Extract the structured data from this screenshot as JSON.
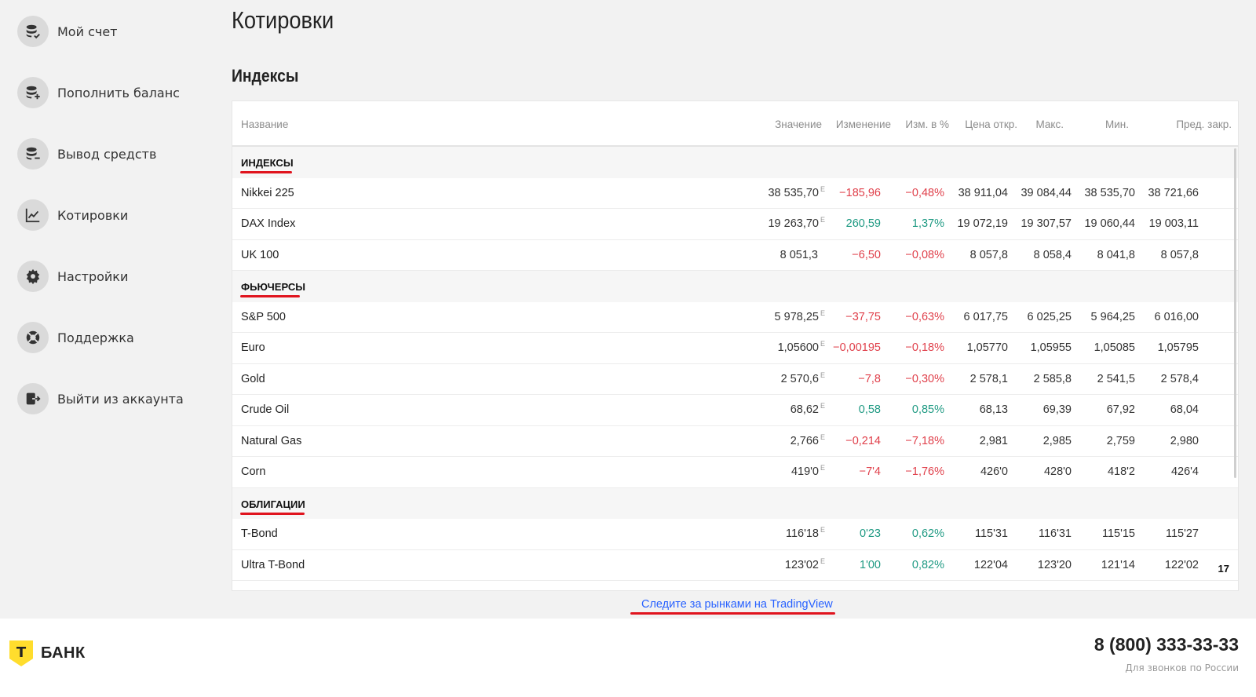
{
  "sidebar": {
    "items": [
      {
        "label": "Мой счет",
        "icon": "coins-check-icon"
      },
      {
        "label": "Пополнить баланс",
        "icon": "coins-plus-icon"
      },
      {
        "label": "Вывод средств",
        "icon": "coins-minus-icon"
      },
      {
        "label": "Котировки",
        "icon": "chart-line-icon"
      },
      {
        "label": "Настройки",
        "icon": "gear-icon"
      },
      {
        "label": "Поддержка",
        "icon": "lifebuoy-icon"
      },
      {
        "label": "Выйти из аккаунта",
        "icon": "logout-icon"
      }
    ]
  },
  "main": {
    "title": "Котировки",
    "section_title": "Индексы"
  },
  "table": {
    "columns": {
      "name": "Название",
      "value": "Значение",
      "change": "Изменение",
      "change_pct": "Изм. в %",
      "open": "Цена откр.",
      "high": "Макс.",
      "low": "Мин.",
      "prev_close": "Пред. закр."
    },
    "groups": {
      "indices": "ИНДЕКСЫ",
      "futures": "ФЬЮЧЕРСЫ",
      "bonds": "ОБЛИГАЦИИ"
    },
    "rows": {
      "nikkei": {
        "name": "Nikkei 225",
        "value": "38 535,70",
        "flag": "E",
        "change": "−185,96",
        "pct": "−0,48%",
        "open": "38 911,04",
        "high": "39 084,44",
        "low": "38 535,70",
        "prev": "38 721,66"
      },
      "dax": {
        "name": "DAX Index",
        "value": "19 263,70",
        "flag": "E",
        "change": "260,59",
        "pct": "1,37%",
        "open": "19 072,19",
        "high": "19 307,57",
        "low": "19 060,44",
        "prev": "19 003,11"
      },
      "uk100": {
        "name": "UK 100",
        "value": "8 051,3",
        "flag": "",
        "change": "−6,50",
        "pct": "−0,08%",
        "open": "8 057,8",
        "high": "8 058,4",
        "low": "8 041,8",
        "prev": "8 057,8"
      },
      "sp500": {
        "name": "S&P 500",
        "value": "5 978,25",
        "flag": "E",
        "change": "−37,75",
        "pct": "−0,63%",
        "open": "6 017,75",
        "high": "6 025,25",
        "low": "5 964,25",
        "prev": "6 016,00"
      },
      "euro": {
        "name": "Euro",
        "value": "1,05600",
        "flag": "E",
        "change": "−0,00195",
        "pct": "−0,18%",
        "open": "1,05770",
        "high": "1,05955",
        "low": "1,05085",
        "prev": "1,05795"
      },
      "gold": {
        "name": "Gold",
        "value": "2 570,6",
        "flag": "E",
        "change": "−7,8",
        "pct": "−0,30%",
        "open": "2 578,1",
        "high": "2 585,8",
        "low": "2 541,5",
        "prev": "2 578,4"
      },
      "crude": {
        "name": "Crude Oil",
        "value": "68,62",
        "flag": "E",
        "change": "0,58",
        "pct": "0,85%",
        "open": "68,13",
        "high": "69,39",
        "low": "67,92",
        "prev": "68,04"
      },
      "gas": {
        "name": "Natural Gas",
        "value": "2,766",
        "flag": "E",
        "change": "−0,214",
        "pct": "−7,18%",
        "open": "2,981",
        "high": "2,985",
        "low": "2,759",
        "prev": "2,980"
      },
      "corn": {
        "name": "Corn",
        "value": "419'0",
        "flag": "E",
        "change": "−7'4",
        "pct": "−1,76%",
        "open": "426'0",
        "high": "428'0",
        "low": "418'2",
        "prev": "426'4"
      },
      "tbond": {
        "name": "T-Bond",
        "value": "116'18",
        "flag": "E",
        "change": "0'23",
        "pct": "0,62%",
        "open": "115'31",
        "high": "116'31",
        "low": "115'15",
        "prev": "115'27"
      },
      "ultra": {
        "name": "Ultra T-Bond",
        "value": "123'02",
        "flag": "E",
        "change": "1'00",
        "pct": "0,82%",
        "open": "122'04",
        "high": "123'20",
        "low": "121'14",
        "prev": "122'02"
      }
    },
    "tv_logo": "17"
  },
  "links": {
    "tradingview": "Следите за рынками на TradingView"
  },
  "footer": {
    "logo_letter": "Т",
    "logo_text": "БАНК",
    "phone": "8 (800) 333-33-33",
    "phone_caption": "Для звонков по России"
  },
  "colors": {
    "negative": "#e0404b",
    "positive": "#1f9a83",
    "accent_underline": "#e0141e",
    "link": "#2962ff",
    "brand_yellow": "#ffdd2d"
  }
}
